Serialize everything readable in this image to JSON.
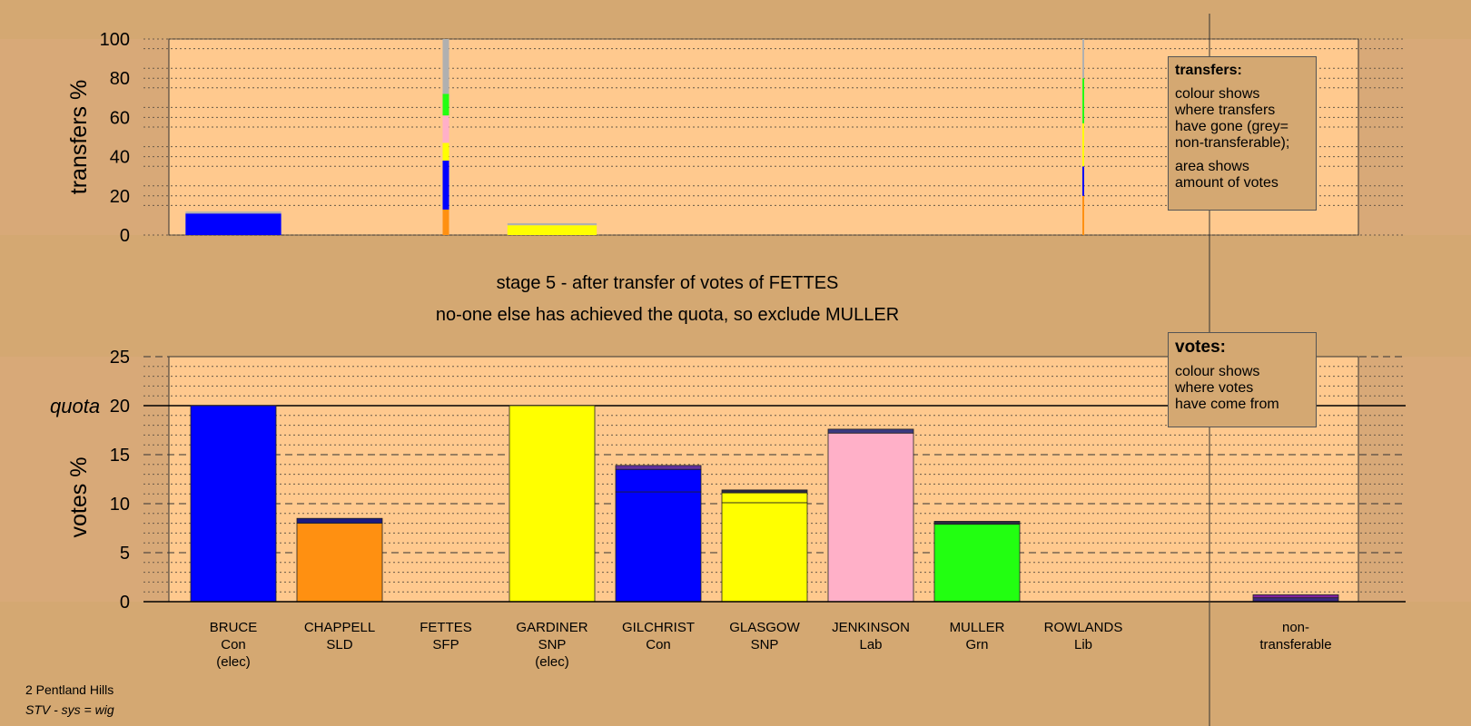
{
  "chart_data": {
    "top": {
      "type": "bar",
      "ylabel": "transfers %",
      "ylim": [
        0,
        100
      ],
      "yticks": [
        0,
        20,
        40,
        60,
        80,
        100
      ],
      "segments": [
        {
          "candidate_index": 0,
          "stack": [
            {
              "from": 0,
              "to": 11,
              "color": "#0000ff"
            },
            {
              "from": 11,
              "to": 12,
              "color": "#b0b0b0"
            }
          ],
          "width_share": 0.9
        },
        {
          "candidate_index": 2,
          "stack": [
            {
              "from": 0,
              "to": 13,
              "color": "#ff9011"
            },
            {
              "from": 13,
              "to": 38,
              "color": "#0000ff"
            },
            {
              "from": 38,
              "to": 47,
              "color": "#ffff00"
            },
            {
              "from": 47,
              "to": 61,
              "color": "#ffb0c8"
            },
            {
              "from": 61,
              "to": 72,
              "color": "#22ff11"
            },
            {
              "from": 72,
              "to": 100,
              "color": "#b0b0b0"
            }
          ],
          "width_share": 0.06
        },
        {
          "candidate_index": 3,
          "stack": [
            {
              "from": 0,
              "to": 5,
              "color": "#ffff00"
            },
            {
              "from": 5,
              "to": 6,
              "color": "#b0b0b0"
            }
          ],
          "width_share": 0.84
        },
        {
          "candidate_index": 8,
          "stack": [
            {
              "from": 0,
              "to": 20,
              "color": "#ff9011"
            },
            {
              "from": 20,
              "to": 35,
              "color": "#0000ff"
            },
            {
              "from": 35,
              "to": 57,
              "color": "#ffff00"
            },
            {
              "from": 57,
              "to": 80,
              "color": "#22ff11"
            },
            {
              "from": 80,
              "to": 100,
              "color": "#b0b0b0"
            }
          ],
          "width_share": 0.015
        }
      ]
    },
    "bottom": {
      "type": "bar",
      "ylabel": "votes %",
      "ylim": [
        0,
        25
      ],
      "yticks": [
        0,
        5,
        10,
        15,
        20,
        25
      ],
      "quota": 20,
      "quota_label": "quota",
      "categories": [
        {
          "name": "BRUCE",
          "party": "Con",
          "status": "(elec)"
        },
        {
          "name": "CHAPPELL",
          "party": "SLD",
          "status": ""
        },
        {
          "name": "FETTES",
          "party": "SFP",
          "status": ""
        },
        {
          "name": "GARDINER",
          "party": "SNP",
          "status": "(elec)"
        },
        {
          "name": "GILCHRIST",
          "party": "Con",
          "status": ""
        },
        {
          "name": "GLASGOW",
          "party": "SNP",
          "status": ""
        },
        {
          "name": "JENKINSON",
          "party": "Lab",
          "status": ""
        },
        {
          "name": "MULLER",
          "party": "Grn",
          "status": ""
        },
        {
          "name": "ROWLANDS",
          "party": "Lib",
          "status": ""
        }
      ],
      "stacks": [
        [
          {
            "from": 0,
            "to": 20,
            "color": "#0000ff"
          }
        ],
        [
          {
            "from": 0,
            "to": 8.0,
            "color": "#ff9011"
          },
          {
            "from": 8.0,
            "to": 8.5,
            "color": "#1a1a80"
          }
        ],
        [],
        [
          {
            "from": 0,
            "to": 20,
            "color": "#ffff00"
          }
        ],
        [
          {
            "from": 0,
            "to": 11.2,
            "color": "#0000ff"
          },
          {
            "from": 11.2,
            "to": 13.5,
            "color": "#0000ff"
          },
          {
            "from": 13.5,
            "to": 13.9,
            "color": "#6030a0"
          }
        ],
        [
          {
            "from": 0,
            "to": 10.1,
            "color": "#ffff00"
          },
          {
            "from": 10.1,
            "to": 11.1,
            "color": "#ffff00"
          },
          {
            "from": 11.1,
            "to": 11.4,
            "color": "#2a2a40"
          }
        ],
        [
          {
            "from": 0,
            "to": 17.2,
            "color": "#ffb0c8"
          },
          {
            "from": 17.2,
            "to": 17.6,
            "color": "#3a3a80"
          }
        ],
        [
          {
            "from": 0,
            "to": 7.9,
            "color": "#22ff11"
          },
          {
            "from": 7.9,
            "to": 8.2,
            "color": "#2a2a40"
          }
        ],
        []
      ],
      "nontransferable": {
        "label_line1": "non-",
        "label_line2": "transferable",
        "stack": [
          {
            "from": 0,
            "to": 0.4,
            "color": "#3a2a80"
          },
          {
            "from": 0.4,
            "to": 0.7,
            "color": "#8020a0"
          }
        ]
      }
    }
  },
  "stage_text": "stage 5 - after transfer of votes of FETTES",
  "action_text": "no-one else has achieved the quota, so exclude MULLER",
  "legend_transfers": {
    "title": "transfers:",
    "line1": "colour shows",
    "line2": "where transfers",
    "line3": "have gone (grey=",
    "line4": "non-transferable);",
    "line5": "area shows",
    "line6": "amount of votes"
  },
  "legend_votes": {
    "title": "votes:",
    "line1": "colour shows",
    "line2": "where votes",
    "line3": "have come from"
  },
  "footer": {
    "ward": "2 Pentland Hills",
    "system": "STV - sys = wig"
  }
}
